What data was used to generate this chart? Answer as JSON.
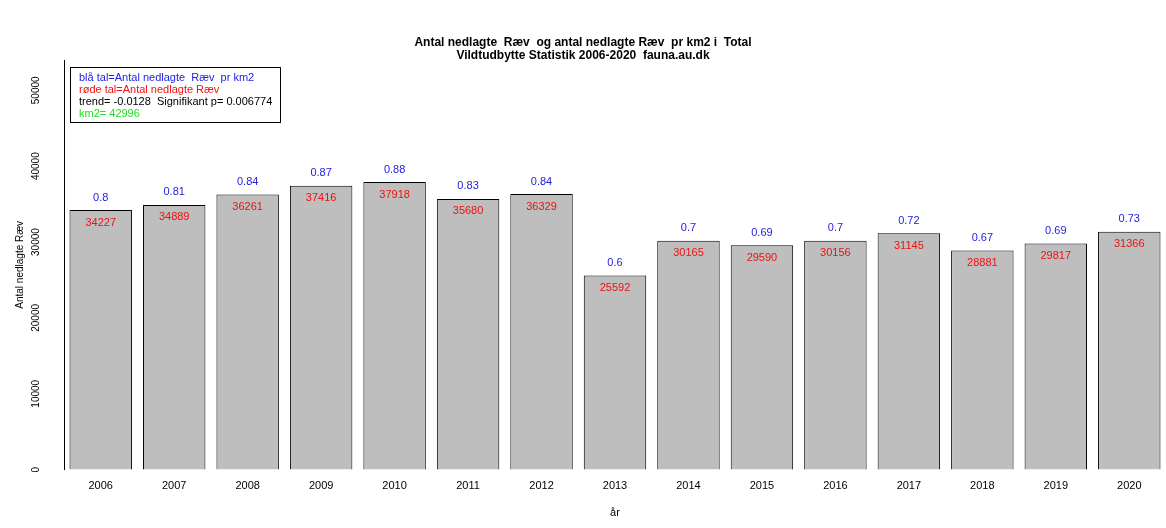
{
  "chart_data": {
    "type": "bar",
    "title": "Antal nedlagte  Ræv  og antal nedlagte Ræv  pr km2 i  Total",
    "subtitle": "Vildtudbytte Statistik 2006-2020  fauna.au.dk",
    "xlabel": "år",
    "ylabel": "Antal nedlagte Ræv",
    "categories": [
      "2006",
      "2007",
      "2008",
      "2009",
      "2010",
      "2011",
      "2012",
      "2013",
      "2014",
      "2015",
      "2016",
      "2017",
      "2018",
      "2019",
      "2020"
    ],
    "values": [
      34227,
      34889,
      36261,
      37416,
      37918,
      35680,
      36329,
      25592,
      30165,
      29590,
      30156,
      31145,
      28881,
      29817,
      31366
    ],
    "color": "#bebebe",
    "data_labels": true,
    "ylim": [
      0,
      54000
    ],
    "yticks": [
      0,
      10000,
      20000,
      30000,
      40000,
      50000
    ],
    "grid": false,
    "legend": false,
    "annotations": [
      "blå tal=Antal nedlagte  Ræv  pr km2",
      "røde tal=Antal nedlagte Ræv",
      "trend= -0.0128  Signifikant p= 0.006774",
      "km2= 42996",
      {
        "text": "0.8",
        "x": "2006",
        "y": 34227
      },
      {
        "text": "0.81",
        "x": "2007",
        "y": 34889
      },
      {
        "text": "0.84",
        "x": "2008",
        "y": 36261
      },
      {
        "text": "0.87",
        "x": "2009",
        "y": 37416
      },
      {
        "text": "0.88",
        "x": "2010",
        "y": 37918
      },
      {
        "text": "0.83",
        "x": "2011",
        "y": 35680
      },
      {
        "text": "0.84",
        "x": "2012",
        "y": 36329
      },
      {
        "text": "0.6",
        "x": "2013",
        "y": 25592
      },
      {
        "text": "0.7",
        "x": "2014",
        "y": 30165
      },
      {
        "text": "0.69",
        "x": "2015",
        "y": 29590
      },
      {
        "text": "0.7",
        "x": "2016",
        "y": 30156
      },
      {
        "text": "0.72",
        "x": "2017",
        "y": 31145
      },
      {
        "text": "0.67",
        "x": "2018",
        "y": 28881
      },
      {
        "text": "0.69",
        "x": "2019",
        "y": 29817
      },
      {
        "text": "0.73",
        "x": "2020",
        "y": 31366
      }
    ]
  }
}
